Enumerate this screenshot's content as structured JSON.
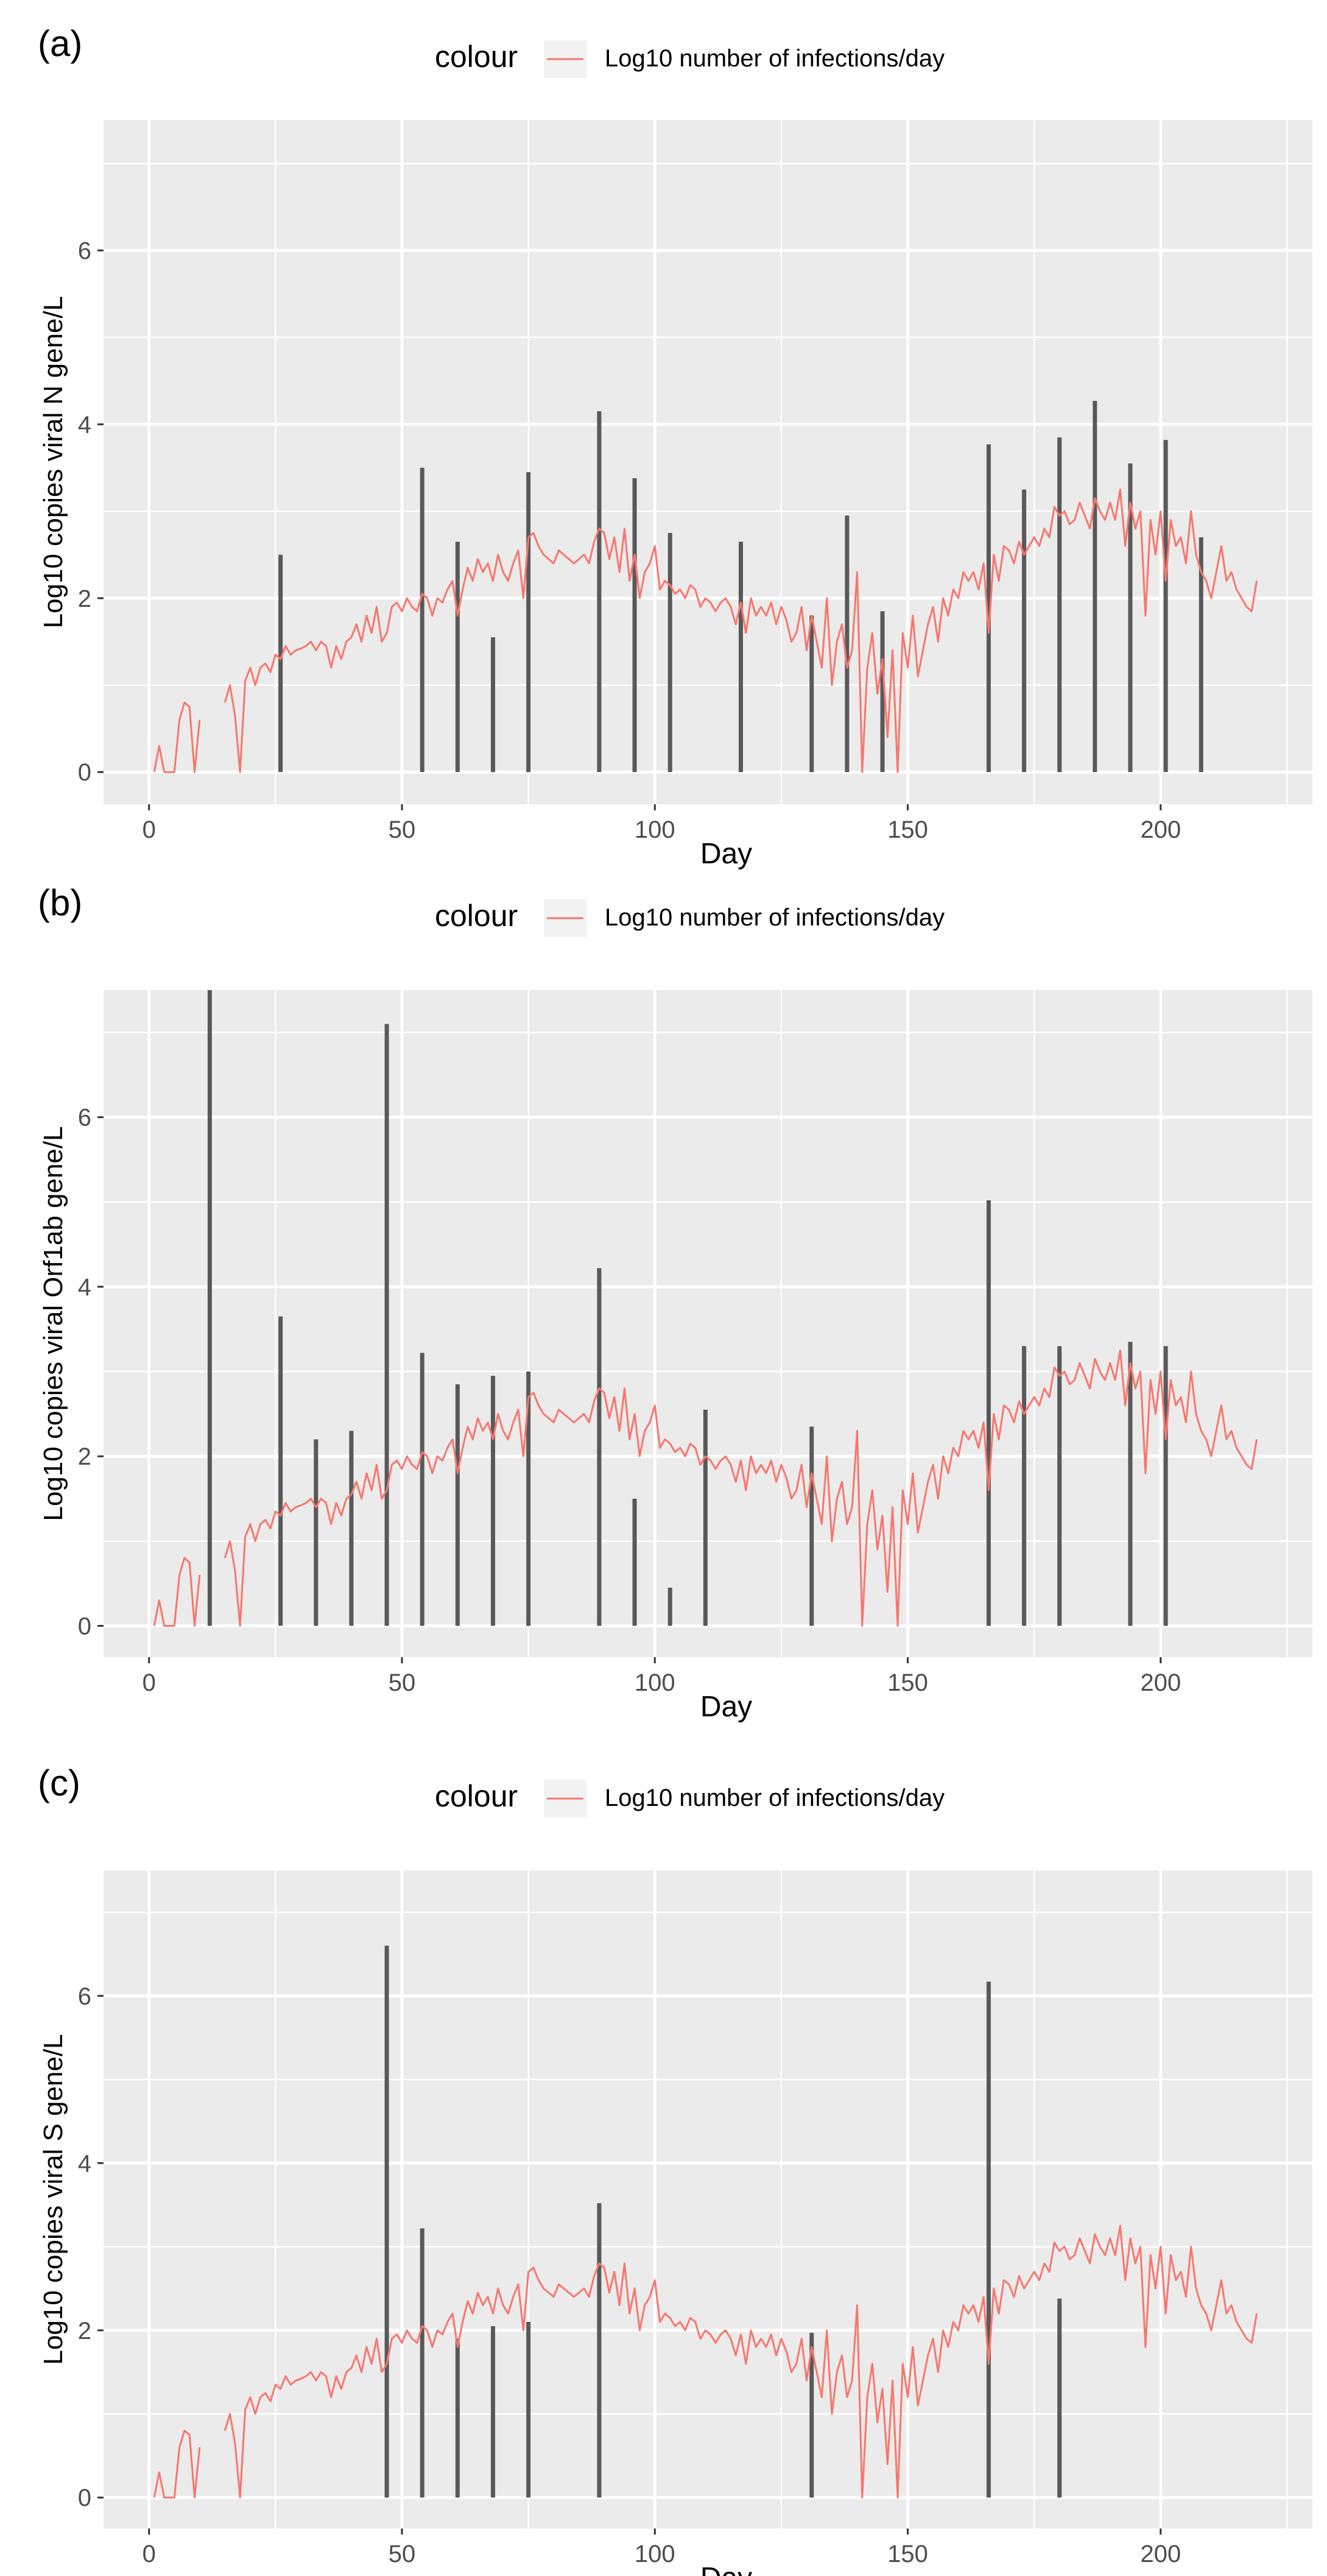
{
  "colors": {
    "panel_bg": "#EBEBEB",
    "grid": "#FFFFFF",
    "bar": "#595959",
    "line": "#F8766D",
    "legend_key_bg": "#F2F2F2",
    "text": "#000000",
    "tick_text": "#4D4D4D"
  },
  "legend": {
    "title": "colour",
    "label": "Log10 number of infections/day"
  },
  "infections_series": {
    "start_day": 1,
    "values": [
      0.0,
      0.3,
      0.0,
      0.0,
      0.0,
      0.6,
      0.8,
      0.75,
      0.0,
      0.6,
      null,
      null,
      null,
      null,
      0.8,
      1.0,
      0.65,
      0.0,
      1.05,
      1.2,
      1.0,
      1.2,
      1.25,
      1.15,
      1.35,
      1.3,
      1.45,
      1.35,
      1.4,
      1.42,
      1.45,
      1.5,
      1.4,
      1.5,
      1.45,
      1.2,
      1.45,
      1.3,
      1.5,
      1.55,
      1.7,
      1.5,
      1.8,
      1.6,
      1.9,
      1.5,
      1.6,
      1.9,
      1.95,
      1.85,
      2.0,
      1.9,
      1.85,
      2.05,
      2.0,
      1.8,
      2.0,
      1.95,
      2.1,
      2.2,
      1.8,
      2.1,
      2.35,
      2.2,
      2.45,
      2.3,
      2.4,
      2.2,
      2.5,
      2.3,
      2.2,
      2.4,
      2.55,
      2.0,
      2.7,
      2.75,
      2.6,
      2.5,
      2.45,
      2.4,
      2.55,
      2.5,
      2.45,
      2.4,
      2.45,
      2.5,
      2.4,
      2.65,
      2.8,
      2.75,
      2.45,
      2.7,
      2.3,
      2.8,
      2.2,
      2.5,
      2.0,
      2.3,
      2.4,
      2.6,
      2.1,
      2.2,
      2.15,
      2.05,
      2.1,
      2.0,
      2.15,
      2.1,
      1.9,
      2.0,
      1.95,
      1.85,
      1.95,
      2.0,
      1.9,
      1.7,
      1.95,
      1.6,
      2.0,
      1.8,
      1.9,
      1.8,
      1.95,
      1.7,
      1.9,
      1.75,
      1.5,
      1.6,
      1.9,
      1.4,
      1.8,
      1.5,
      1.2,
      2.0,
      1.0,
      1.5,
      1.7,
      1.2,
      1.4,
      2.3,
      0.0,
      1.2,
      1.6,
      0.9,
      1.3,
      0.4,
      1.4,
      0.0,
      1.6,
      1.2,
      1.8,
      1.1,
      1.4,
      1.7,
      1.9,
      1.5,
      2.0,
      1.8,
      2.1,
      2.0,
      2.3,
      2.2,
      2.3,
      2.1,
      2.4,
      1.6,
      2.5,
      2.2,
      2.6,
      2.55,
      2.4,
      2.65,
      2.5,
      2.6,
      2.7,
      2.6,
      2.8,
      2.7,
      3.05,
      2.95,
      3.0,
      2.85,
      2.9,
      3.1,
      2.95,
      2.8,
      3.15,
      3.0,
      2.9,
      3.1,
      2.9,
      3.25,
      2.6,
      3.1,
      2.8,
      3.0,
      1.8,
      2.9,
      2.5,
      3.0,
      2.2,
      2.9,
      2.6,
      2.7,
      2.4,
      3.0,
      2.5,
      2.3,
      2.2,
      2.0,
      2.3,
      2.6,
      2.2,
      2.3,
      2.1,
      2.0,
      1.9,
      1.85,
      2.2
    ]
  },
  "chart_data": [
    {
      "type": "bar",
      "panel_label": "(a)",
      "xlabel": "Day",
      "ylabel": "Log10 copies viral N gene/L",
      "xlim": [
        -9,
        230
      ],
      "ylim": [
        -0.37,
        7.5
      ],
      "xticks": [
        0,
        50,
        100,
        150,
        200
      ],
      "yticks": [
        0,
        2,
        4,
        6
      ],
      "bars": [
        {
          "day": 26,
          "value": 2.5
        },
        {
          "day": 54,
          "value": 3.5
        },
        {
          "day": 61,
          "value": 2.65
        },
        {
          "day": 68,
          "value": 1.55
        },
        {
          "day": 75,
          "value": 3.45
        },
        {
          "day": 89,
          "value": 4.15
        },
        {
          "day": 96,
          "value": 3.38
        },
        {
          "day": 103,
          "value": 2.75
        },
        {
          "day": 117,
          "value": 2.65
        },
        {
          "day": 131,
          "value": 1.8
        },
        {
          "day": 138,
          "value": 2.95
        },
        {
          "day": 145,
          "value": 1.85
        },
        {
          "day": 166,
          "value": 3.77
        },
        {
          "day": 173,
          "value": 3.25
        },
        {
          "day": 180,
          "value": 3.85
        },
        {
          "day": 187,
          "value": 4.27
        },
        {
          "day": 194,
          "value": 3.55
        },
        {
          "day": 201,
          "value": 3.82
        },
        {
          "day": 208,
          "value": 2.7
        }
      ],
      "series": [
        {
          "name": "Log10 number of infections/day",
          "source": "infections_series"
        }
      ]
    },
    {
      "type": "bar",
      "panel_label": "(b)",
      "xlabel": "Day",
      "ylabel": "Log10 copies viral Orf1ab gene/L",
      "xlim": [
        -9,
        230
      ],
      "ylim": [
        -0.37,
        7.5
      ],
      "xticks": [
        0,
        50,
        100,
        150,
        200
      ],
      "yticks": [
        0,
        2,
        4,
        6
      ],
      "bars": [
        {
          "day": 12,
          "value": 7.5
        },
        {
          "day": 26,
          "value": 3.65
        },
        {
          "day": 33,
          "value": 2.2
        },
        {
          "day": 40,
          "value": 2.3
        },
        {
          "day": 47,
          "value": 7.1
        },
        {
          "day": 54,
          "value": 3.22
        },
        {
          "day": 61,
          "value": 2.85
        },
        {
          "day": 68,
          "value": 2.95
        },
        {
          "day": 75,
          "value": 3.0
        },
        {
          "day": 89,
          "value": 4.22
        },
        {
          "day": 96,
          "value": 1.5
        },
        {
          "day": 103,
          "value": 0.45
        },
        {
          "day": 110,
          "value": 2.55
        },
        {
          "day": 131,
          "value": 2.35
        },
        {
          "day": 166,
          "value": 5.02
        },
        {
          "day": 173,
          "value": 3.3
        },
        {
          "day": 180,
          "value": 3.3
        },
        {
          "day": 194,
          "value": 3.35
        },
        {
          "day": 201,
          "value": 3.3
        }
      ],
      "series": [
        {
          "name": "Log10 number of infections/day",
          "source": "infections_series"
        }
      ]
    },
    {
      "type": "bar",
      "panel_label": "(c)",
      "xlabel": "Day",
      "ylabel": "Log10 copies viral S gene/L",
      "xlim": [
        -9,
        230
      ],
      "ylim": [
        -0.37,
        7.5
      ],
      "xticks": [
        0,
        50,
        100,
        150,
        200
      ],
      "yticks": [
        0,
        2,
        4,
        6
      ],
      "bars": [
        {
          "day": 47,
          "value": 6.6
        },
        {
          "day": 54,
          "value": 3.22
        },
        {
          "day": 61,
          "value": 1.9
        },
        {
          "day": 68,
          "value": 2.05
        },
        {
          "day": 75,
          "value": 2.1
        },
        {
          "day": 89,
          "value": 3.52
        },
        {
          "day": 131,
          "value": 1.97
        },
        {
          "day": 166,
          "value": 6.17
        },
        {
          "day": 180,
          "value": 2.38
        }
      ],
      "series": [
        {
          "name": "Log10 number of infections/day",
          "source": "infections_series"
        }
      ]
    }
  ]
}
